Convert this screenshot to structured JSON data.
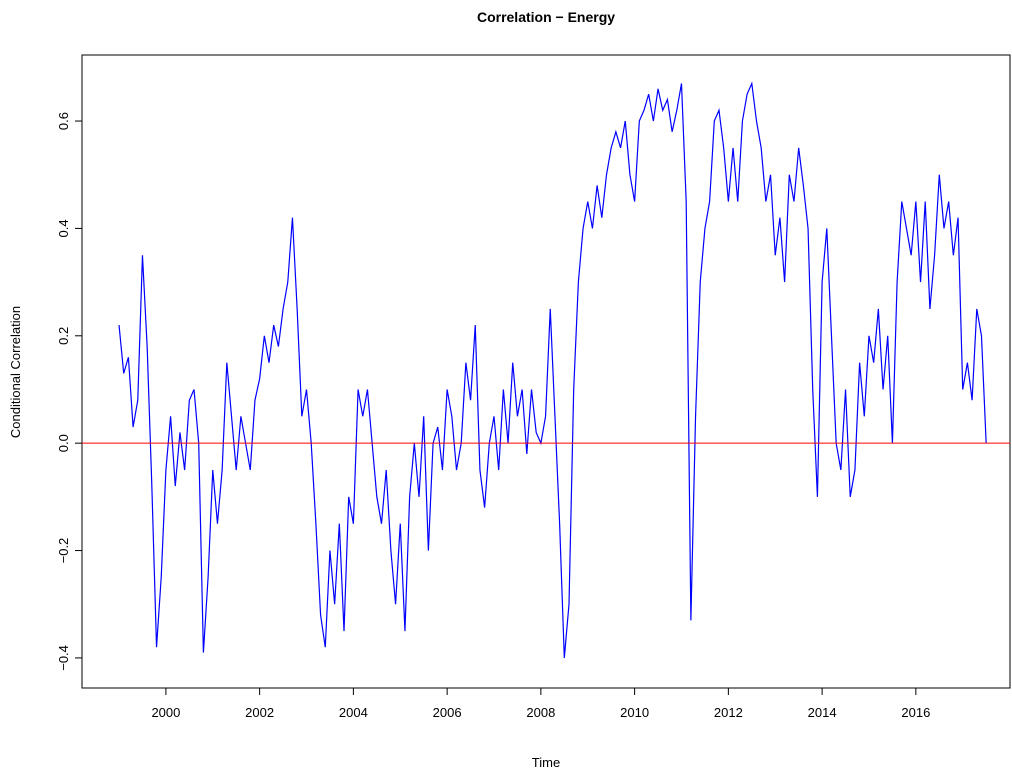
{
  "chart_data": {
    "type": "line",
    "title": "Correlation − Energy",
    "xlabel": "Time",
    "ylabel": "Conditional Correlation",
    "x": [
      1999.0,
      1999.1,
      1999.2,
      1999.3,
      1999.4,
      1999.5,
      1999.6,
      1999.7,
      1999.8,
      1999.9,
      2000.0,
      2000.1,
      2000.2,
      2000.3,
      2000.4,
      2000.5,
      2000.6,
      2000.7,
      2000.8,
      2000.9,
      2001.0,
      2001.1,
      2001.2,
      2001.3,
      2001.4,
      2001.5,
      2001.6,
      2001.7,
      2001.8,
      2001.9,
      2002.0,
      2002.1,
      2002.2,
      2002.3,
      2002.4,
      2002.5,
      2002.6,
      2002.7,
      2002.8,
      2002.9,
      2003.0,
      2003.1,
      2003.2,
      2003.3,
      2003.4,
      2003.5,
      2003.6,
      2003.7,
      2003.8,
      2003.9,
      2004.0,
      2004.1,
      2004.2,
      2004.3,
      2004.4,
      2004.5,
      2004.6,
      2004.7,
      2004.8,
      2004.9,
      2005.0,
      2005.1,
      2005.2,
      2005.3,
      2005.4,
      2005.5,
      2005.6,
      2005.7,
      2005.8,
      2005.9,
      2006.0,
      2006.1,
      2006.2,
      2006.3,
      2006.4,
      2006.5,
      2006.6,
      2006.7,
      2006.8,
      2006.9,
      2007.0,
      2007.1,
      2007.2,
      2007.3,
      2007.4,
      2007.5,
      2007.6,
      2007.7,
      2007.8,
      2007.9,
      2008.0,
      2008.1,
      2008.2,
      2008.3,
      2008.4,
      2008.5,
      2008.6,
      2008.7,
      2008.8,
      2008.9,
      2009.0,
      2009.1,
      2009.2,
      2009.3,
      2009.4,
      2009.5,
      2009.6,
      2009.7,
      2009.8,
      2009.9,
      2010.0,
      2010.1,
      2010.2,
      2010.3,
      2010.4,
      2010.5,
      2010.6,
      2010.7,
      2010.8,
      2010.9,
      2011.0,
      2011.1,
      2011.2,
      2011.3,
      2011.4,
      2011.5,
      2011.6,
      2011.7,
      2011.8,
      2011.9,
      2012.0,
      2012.1,
      2012.2,
      2012.3,
      2012.4,
      2012.5,
      2012.6,
      2012.7,
      2012.8,
      2012.9,
      2013.0,
      2013.1,
      2013.2,
      2013.3,
      2013.4,
      2013.5,
      2013.6,
      2013.7,
      2013.8,
      2013.9,
      2014.0,
      2014.1,
      2014.2,
      2014.3,
      2014.4,
      2014.5,
      2014.6,
      2014.7,
      2014.8,
      2014.9,
      2015.0,
      2015.1,
      2015.2,
      2015.3,
      2015.4,
      2015.5,
      2015.6,
      2015.7,
      2015.8,
      2015.9,
      2016.0,
      2016.1,
      2016.2,
      2016.3,
      2016.4,
      2016.5,
      2016.6,
      2016.7,
      2016.8,
      2016.9,
      2017.0,
      2017.1,
      2017.2,
      2017.3,
      2017.4,
      2017.5
    ],
    "series": [
      {
        "color": "#0000ff",
        "values": [
          0.22,
          0.13,
          0.16,
          0.03,
          0.08,
          0.35,
          0.18,
          -0.08,
          -0.38,
          -0.25,
          -0.05,
          0.05,
          -0.08,
          0.02,
          -0.05,
          0.08,
          0.1,
          0.0,
          -0.39,
          -0.25,
          -0.05,
          -0.15,
          -0.05,
          0.15,
          0.05,
          -0.05,
          0.05,
          0.0,
          -0.05,
          0.08,
          0.12,
          0.2,
          0.15,
          0.22,
          0.18,
          0.25,
          0.3,
          0.42,
          0.25,
          0.05,
          0.1,
          0.0,
          -0.15,
          -0.32,
          -0.38,
          -0.2,
          -0.3,
          -0.15,
          -0.35,
          -0.1,
          -0.15,
          0.1,
          0.05,
          0.1,
          0.0,
          -0.1,
          -0.15,
          -0.05,
          -0.2,
          -0.3,
          -0.15,
          -0.35,
          -0.1,
          0.0,
          -0.1,
          0.05,
          -0.2,
          0.0,
          0.03,
          -0.05,
          0.1,
          0.05,
          -0.05,
          0.0,
          0.15,
          0.08,
          0.22,
          -0.05,
          -0.12,
          0.0,
          0.05,
          -0.05,
          0.1,
          0.0,
          0.15,
          0.05,
          0.1,
          -0.02,
          0.1,
          0.02,
          0.0,
          0.05,
          0.25,
          0.05,
          -0.15,
          -0.4,
          -0.3,
          0.1,
          0.3,
          0.4,
          0.45,
          0.4,
          0.48,
          0.42,
          0.5,
          0.55,
          0.58,
          0.55,
          0.6,
          0.5,
          0.45,
          0.6,
          0.62,
          0.65,
          0.6,
          0.66,
          0.62,
          0.64,
          0.58,
          0.62,
          0.67,
          0.45,
          -0.33,
          0.05,
          0.3,
          0.4,
          0.45,
          0.6,
          0.62,
          0.55,
          0.45,
          0.55,
          0.45,
          0.6,
          0.65,
          0.67,
          0.6,
          0.55,
          0.45,
          0.5,
          0.35,
          0.42,
          0.3,
          0.5,
          0.45,
          0.55,
          0.48,
          0.4,
          0.1,
          -0.1,
          0.3,
          0.4,
          0.2,
          0.0,
          -0.05,
          0.1,
          -0.1,
          -0.05,
          0.15,
          0.05,
          0.2,
          0.15,
          0.25,
          0.1,
          0.2,
          0.0,
          0.3,
          0.45,
          0.4,
          0.35,
          0.45,
          0.3,
          0.45,
          0.25,
          0.35,
          0.5,
          0.4,
          0.45,
          0.35,
          0.42,
          0.1,
          0.15,
          0.08,
          0.25,
          0.2,
          0.0
        ]
      }
    ],
    "xlim": [
      1998.21,
      2018.03
    ],
    "xticks": [
      2000,
      2002,
      2004,
      2006,
      2008,
      2010,
      2012,
      2014,
      2016
    ],
    "ylim": [
      -0.456,
      0.723
    ],
    "yticks": [
      {
        "value": -0.4,
        "label": "−0.4"
      },
      {
        "value": -0.2,
        "label": "−0.2"
      },
      {
        "value": 0,
        "label": "0.0"
      },
      0.2,
      0.4,
      0.6
    ],
    "reference_line": {
      "value": 0,
      "color": "#ff0000"
    }
  }
}
